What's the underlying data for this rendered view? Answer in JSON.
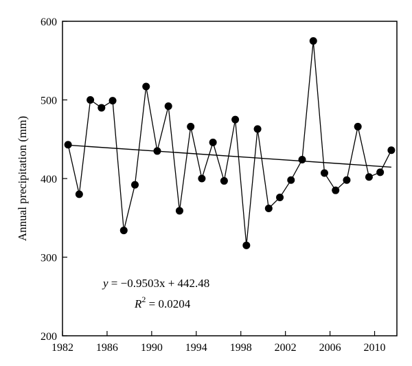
{
  "chart_data": {
    "type": "scatter",
    "title": "",
    "xlabel": "",
    "ylabel": "Annual precipitation (mm)",
    "xlim": [
      1982,
      2012
    ],
    "ylim": [
      200,
      600
    ],
    "xticks": [
      1982,
      1986,
      1990,
      1994,
      1998,
      2002,
      2006,
      2010
    ],
    "xtick_labels": [
      "1982",
      "1986",
      "1990",
      "1994",
      "1998",
      "2002",
      "2006",
      "2010"
    ],
    "yticks": [
      200,
      300,
      400,
      500,
      600
    ],
    "ytick_labels": [
      "200",
      "300",
      "400",
      "500",
      "600"
    ],
    "grid": false,
    "series": [
      {
        "x": [
          1982.5,
          1983.5,
          1984.5,
          1985.5,
          1986.5,
          1987.5,
          1988.5,
          1989.5,
          1990.5,
          1991.5,
          1992.5,
          1993.5,
          1994.5,
          1995.5,
          1996.5,
          1997.5,
          1998.5,
          1999.5,
          2000.5,
          2001.5,
          2002.5,
          2003.5,
          2004.5,
          2005.5,
          2006.5,
          2007.5,
          2008.5,
          2009.5,
          2010.5,
          2011.5
        ],
        "y": [
          443,
          380,
          500,
          490,
          499,
          334,
          392,
          517,
          435,
          492,
          359,
          466,
          400,
          446,
          397,
          475,
          315,
          463,
          362,
          376,
          398,
          424,
          575,
          407,
          385,
          398,
          466,
          402,
          408,
          436
        ]
      }
    ],
    "trendline": {
      "x": [
        1982.5,
        2011.5
      ],
      "y": [
        442.5,
        414.5
      ]
    },
    "annotations": {
      "equation_prefix": "y",
      "equation_body": " = −0.9503x + 442.48",
      "r2_prefix": "R",
      "r2_sup": "2",
      "r2_body": " = 0.0204"
    }
  }
}
